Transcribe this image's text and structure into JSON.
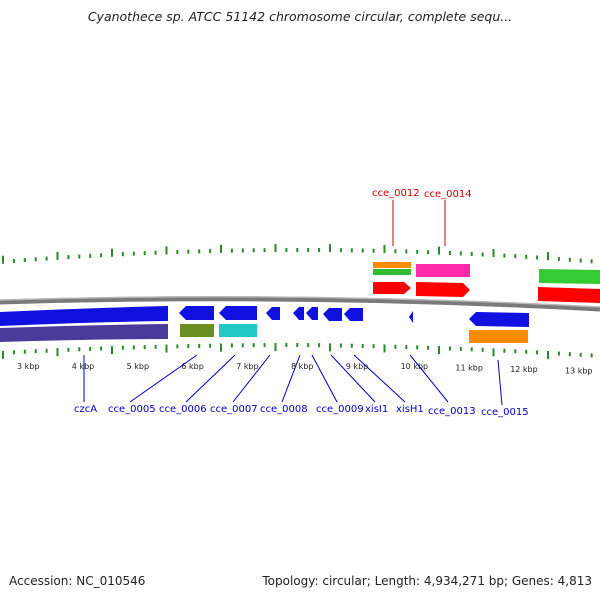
{
  "title": "Cyanothece sp. ATCC 51142 chromosome circular, complete sequ...",
  "footer": {
    "accession": "Accession: NC_010546",
    "summary": "Topology: circular; Length: 4,934,271 bp; Genes: 4,813"
  },
  "colors": {
    "tick": "#2a8a2a",
    "blue_gene": "#1010e0",
    "navy_gene": "#4a3a9a",
    "olive_gene": "#6b8e23",
    "cyan_gene": "#20c8c8",
    "red_gene": "#ff0000",
    "pink_gene": "#ff2aa8",
    "orange_gene": "#ff8c00",
    "green_gene": "#33cc33",
    "backbone": "#808080",
    "label_blue": "#0000c0",
    "label_red": "#cc0000"
  },
  "kbp_ticks": [
    "3 kbp",
    "4 kbp",
    "5 kbp",
    "6 kbp",
    "7 kbp",
    "8 kbp",
    "9 kbp",
    "10 kbp",
    "11 kbp",
    "12 kbp",
    "13 kbp"
  ],
  "genes_lower": [
    {
      "label": "czcA",
      "icon": "gene-arrow"
    },
    {
      "label": "cce_0005",
      "icon": "gene-arrow"
    },
    {
      "label": "cce_0006",
      "icon": "gene-arrow"
    },
    {
      "label": "cce_0007",
      "icon": "gene-arrow"
    },
    {
      "label": "cce_0008",
      "icon": "gene-arrow"
    },
    {
      "label": "cce_0009",
      "icon": "gene-arrow"
    },
    {
      "label": "xisI1",
      "icon": "gene-arrow"
    },
    {
      "label": "xisH1",
      "icon": "gene-arrow"
    },
    {
      "label": "cce_0013",
      "icon": "gene-arrow"
    },
    {
      "label": "cce_0015",
      "icon": "gene-arrow"
    }
  ],
  "genes_upper": [
    {
      "label": "cce_0012",
      "icon": "gene-arrow"
    },
    {
      "label": "cce_0014",
      "icon": "gene-arrow"
    }
  ]
}
